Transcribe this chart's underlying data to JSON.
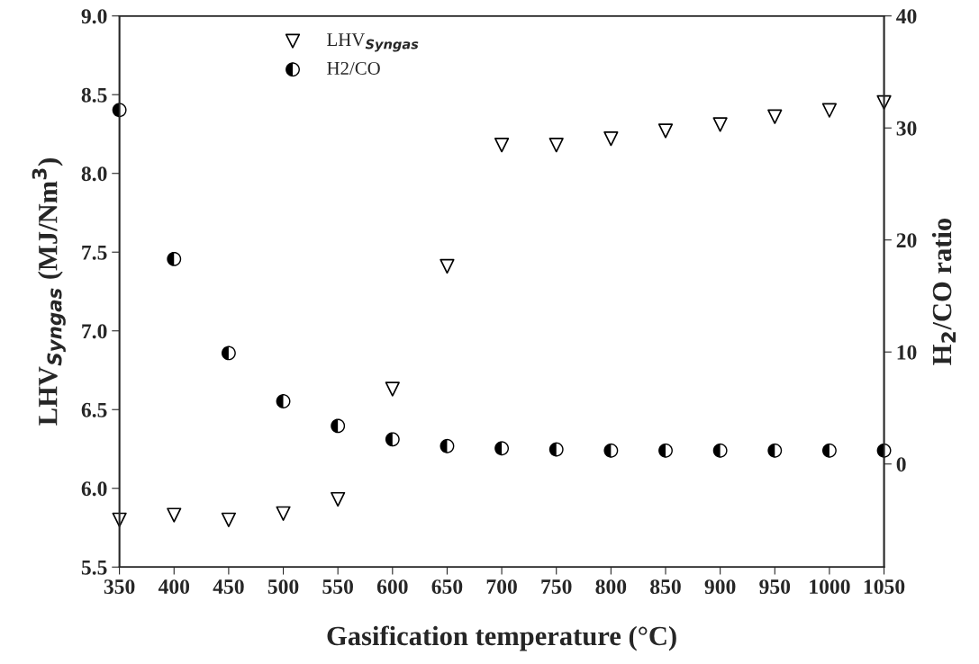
{
  "chart_data": {
    "type": "scatter",
    "xlabel": "Gasification temperature (°C)",
    "ylabel": "LHV$_{Syngas}$ (MJ/Nm$^{3}$)",
    "y2label": "H$_{2}$/CO ratio",
    "x": [
      350,
      400,
      450,
      500,
      550,
      600,
      650,
      700,
      750,
      800,
      850,
      900,
      950,
      1000,
      1050
    ],
    "xlim": [
      350,
      1050
    ],
    "xticks": [
      350,
      400,
      450,
      500,
      550,
      600,
      650,
      700,
      750,
      800,
      850,
      900,
      950,
      1000,
      1050
    ],
    "ylim": [
      5.5,
      9.0
    ],
    "yticks": [
      {
        "value": 5.5,
        "label": "5.5"
      },
      {
        "value": 6.0,
        "label": "6.0"
      },
      {
        "value": 6.5,
        "label": "6.5"
      },
      {
        "value": 7.0,
        "label": "7.0"
      },
      {
        "value": 7.5,
        "label": "7.5"
      },
      {
        "value": 8.0,
        "label": "8.0"
      },
      {
        "value": 8.5,
        "label": "8.5"
      },
      {
        "value": 9.0,
        "label": "9.0"
      }
    ],
    "y2lim": [
      -9.2,
      40
    ],
    "y2ticks": [
      0,
      10,
      20,
      30,
      40
    ],
    "legend": "top left",
    "grid": false,
    "series": [
      {
        "name": "LHV$_{Syngas}$",
        "color": "#000000",
        "marker": "triangle",
        "values": [
          5.8,
          5.83,
          5.8,
          5.84,
          5.93,
          6.63,
          7.41,
          8.18,
          8.18,
          8.22,
          8.27,
          8.31,
          8.36,
          8.4,
          8.45
        ]
      },
      {
        "name": "H2/CO",
        "color": "#000000",
        "marker": "circle",
        "axis": "y2",
        "values": [
          31.6,
          18.3,
          9.9,
          5.6,
          3.4,
          2.2,
          1.6,
          1.4,
          1.3,
          1.2,
          1.2,
          1.2,
          1.2,
          1.2,
          1.2
        ]
      }
    ]
  }
}
